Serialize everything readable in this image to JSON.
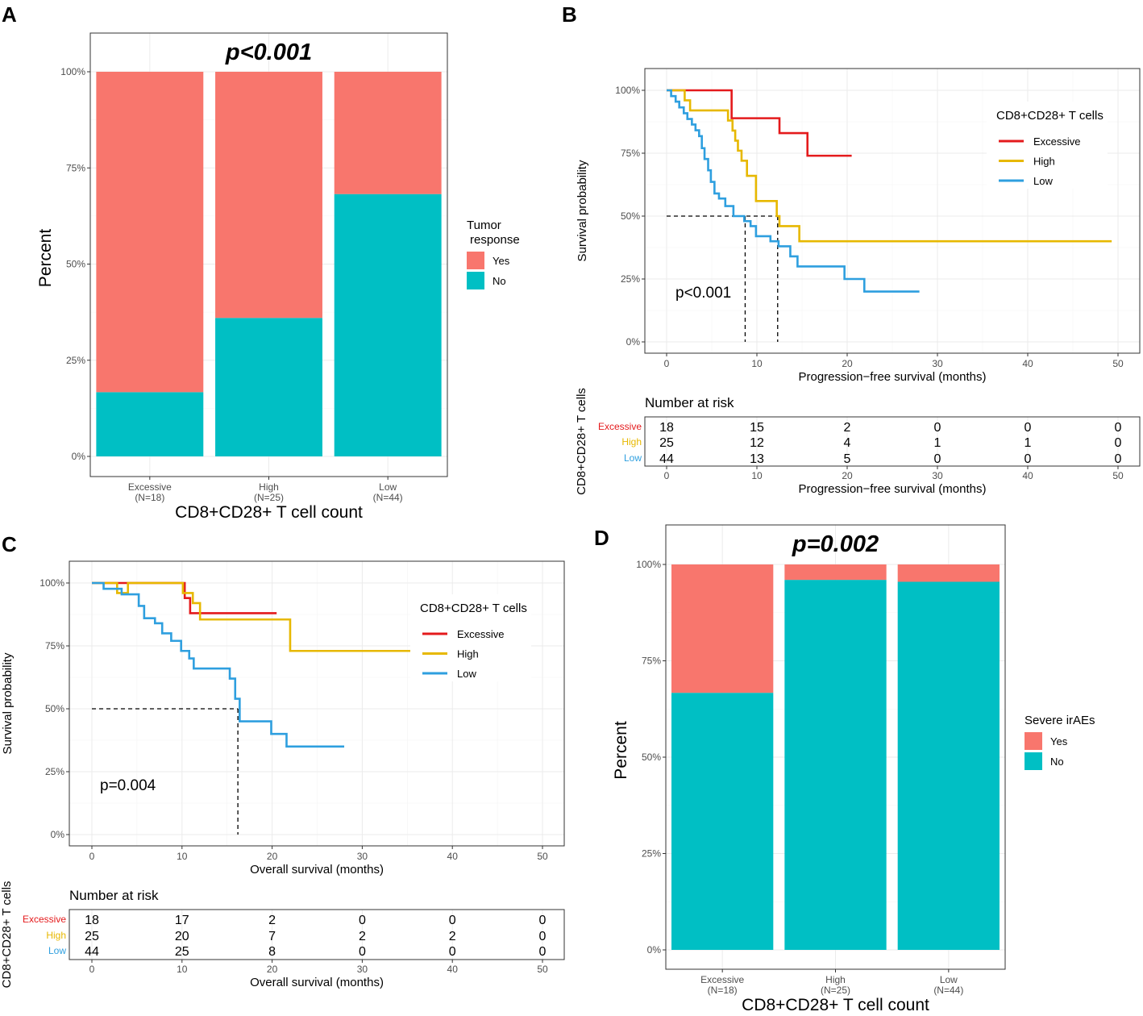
{
  "panels": {
    "A": {
      "letter": "A"
    },
    "B": {
      "letter": "B"
    },
    "C": {
      "letter": "C"
    },
    "D": {
      "letter": "D"
    }
  },
  "colors": {
    "yes": "#F8766D",
    "no": "#00BFC4",
    "excessive": "#E41A1C",
    "high": "#E7B800",
    "low": "#2E9FDF"
  },
  "chart_data": [
    {
      "id": "A",
      "type": "bar",
      "stacked": true,
      "title": "p<0.001",
      "xlabel": "CD8+CD28+ T cell count",
      "ylabel": "Percent",
      "categories": [
        "Excessive",
        "High",
        "Low"
      ],
      "category_n": [
        "(N=18)",
        "(N=25)",
        "(N=44)"
      ],
      "series": [
        {
          "name": "No",
          "color": "#00BFC4",
          "values": [
            16.7,
            36.0,
            68.2
          ]
        },
        {
          "name": "Yes",
          "color": "#F8766D",
          "values": [
            83.3,
            64.0,
            31.8
          ]
        }
      ],
      "yticks": [
        "0%",
        "25%",
        "50%",
        "75%",
        "100%"
      ],
      "ylim": [
        0,
        100
      ],
      "legend": {
        "title_line1": "Tumor",
        "title_line2": "response",
        "entries": [
          "Yes",
          "No"
        ],
        "position": "right"
      }
    },
    {
      "id": "B",
      "type": "line",
      "subtype": "kaplan-meier",
      "title": "p<0.001",
      "xlabel": "Progression−free survival (months)",
      "ylabel": "Survival probability",
      "xlim": [
        0,
        50
      ],
      "ylim": [
        0,
        1
      ],
      "xticks": [
        "0",
        "10",
        "20",
        "30",
        "40",
        "50"
      ],
      "yticks": [
        "0%",
        "25%",
        "50%",
        "75%",
        "100%"
      ],
      "legend": {
        "title": "CD8+CD28+ T cells",
        "entries": [
          "Excessive",
          "High",
          "Low"
        ],
        "position": "top-right"
      },
      "median": {
        "high": 12.3,
        "low": 8.7
      },
      "series": [
        {
          "name": "Excessive",
          "color": "#E41A1C",
          "x": [
            0,
            7.2,
            12.5,
            15.6,
            20.5
          ],
          "y": [
            1.0,
            0.889,
            0.83,
            0.74,
            0.74
          ]
        },
        {
          "name": "High",
          "color": "#E7B800",
          "x": [
            0,
            2.0,
            2.6,
            3.5,
            6.8,
            7.3,
            7.6,
            7.9,
            8.3,
            8.9,
            9.9,
            12.2,
            12.5,
            14.7,
            49.3
          ],
          "y": [
            1.0,
            0.96,
            0.92,
            0.92,
            0.88,
            0.84,
            0.8,
            0.76,
            0.72,
            0.66,
            0.56,
            0.5,
            0.46,
            0.4,
            0.4
          ]
        },
        {
          "name": "Low",
          "color": "#2E9FDF",
          "x": [
            0,
            0.5,
            1.0,
            1.4,
            1.9,
            2.3,
            2.8,
            3.2,
            3.6,
            3.9,
            4.2,
            4.6,
            4.9,
            5.3,
            5.8,
            6.5,
            7.4,
            8.6,
            9.3,
            9.9,
            11.5,
            12.4,
            13.7,
            14.5,
            19.7,
            21.9,
            28.0
          ],
          "y": [
            1.0,
            0.977,
            0.955,
            0.932,
            0.909,
            0.886,
            0.864,
            0.841,
            0.818,
            0.77,
            0.727,
            0.682,
            0.636,
            0.59,
            0.57,
            0.54,
            0.5,
            0.48,
            0.46,
            0.42,
            0.4,
            0.38,
            0.34,
            0.3,
            0.25,
            0.2,
            0.2
          ]
        }
      ],
      "risk_table": {
        "title": "Number at risk",
        "ylabel": "CD8+CD28+ T cells",
        "xlabel": "Progression−free survival (months)",
        "times": [
          0,
          10,
          20,
          30,
          40,
          50
        ],
        "rows": [
          {
            "name": "Excessive",
            "values": [
              "18",
              "15",
              "2",
              "0",
              "0",
              "0"
            ]
          },
          {
            "name": "High",
            "values": [
              "25",
              "12",
              "4",
              "1",
              "1",
              "0"
            ]
          },
          {
            "name": "Low",
            "values": [
              "44",
              "13",
              "5",
              "0",
              "0",
              "0"
            ]
          }
        ]
      }
    },
    {
      "id": "C",
      "type": "line",
      "subtype": "kaplan-meier",
      "title": "p=0.004",
      "xlabel": "Overall survival (months)",
      "ylabel": "Survival probability",
      "xlim": [
        0,
        50
      ],
      "ylim": [
        0,
        1
      ],
      "xticks": [
        "0",
        "10",
        "20",
        "30",
        "40",
        "50"
      ],
      "yticks": [
        "0%",
        "25%",
        "50%",
        "75%",
        "100%"
      ],
      "legend": {
        "title": "CD8+CD28+ T cells",
        "entries": [
          "Excessive",
          "High",
          "Low"
        ],
        "position": "top-right"
      },
      "median": {
        "low": 16.2
      },
      "series": [
        {
          "name": "Excessive",
          "color": "#E41A1C",
          "x": [
            0,
            10.3,
            10.9,
            20.5
          ],
          "y": [
            1.0,
            0.94,
            0.88,
            0.88
          ]
        },
        {
          "name": "High",
          "color": "#E7B800",
          "x": [
            0,
            2.8,
            4.0,
            10.1,
            11.2,
            12.0,
            22.0,
            35.5
          ],
          "y": [
            1.0,
            0.96,
            1.0,
            0.96,
            0.92,
            0.855,
            0.73,
            0.73
          ]
        },
        {
          "name": "Low",
          "color": "#2E9FDF",
          "x": [
            0,
            1.3,
            3.3,
            5.2,
            5.8,
            7.0,
            7.8,
            8.8,
            9.9,
            10.8,
            11.3,
            15.3,
            15.9,
            16.4,
            18.6,
            19.9,
            21.6,
            28.0
          ],
          "y": [
            1.0,
            0.977,
            0.955,
            0.909,
            0.86,
            0.84,
            0.8,
            0.77,
            0.73,
            0.7,
            0.66,
            0.62,
            0.54,
            0.45,
            0.45,
            0.4,
            0.35,
            0.35
          ]
        }
      ],
      "risk_table": {
        "title": "Number at risk",
        "ylabel": "CD8+CD28+ T cells",
        "xlabel": "Overall survival (months)",
        "times": [
          0,
          10,
          20,
          30,
          40,
          50
        ],
        "rows": [
          {
            "name": "Excessive",
            "values": [
              "18",
              "17",
              "2",
              "0",
              "0",
              "0"
            ]
          },
          {
            "name": "High",
            "values": [
              "25",
              "20",
              "7",
              "2",
              "2",
              "0"
            ]
          },
          {
            "name": "Low",
            "values": [
              "44",
              "25",
              "8",
              "0",
              "0",
              "0"
            ]
          }
        ]
      }
    },
    {
      "id": "D",
      "type": "bar",
      "stacked": true,
      "title": "p=0.002",
      "xlabel": "CD8+CD28+ T cell count",
      "ylabel": "Percent",
      "categories": [
        "Excessive",
        "High",
        "Low"
      ],
      "category_n": [
        "(N=18)",
        "(N=25)",
        "(N=44)"
      ],
      "series": [
        {
          "name": "No",
          "color": "#00BFC4",
          "values": [
            66.7,
            96.0,
            95.5
          ]
        },
        {
          "name": "Yes",
          "color": "#F8766D",
          "values": [
            33.3,
            4.0,
            4.5
          ]
        }
      ],
      "yticks": [
        "0%",
        "25%",
        "50%",
        "75%",
        "100%"
      ],
      "ylim": [
        0,
        100
      ],
      "legend": {
        "title": "Severe irAEs",
        "entries": [
          "Yes",
          "No"
        ],
        "position": "right"
      }
    }
  ]
}
